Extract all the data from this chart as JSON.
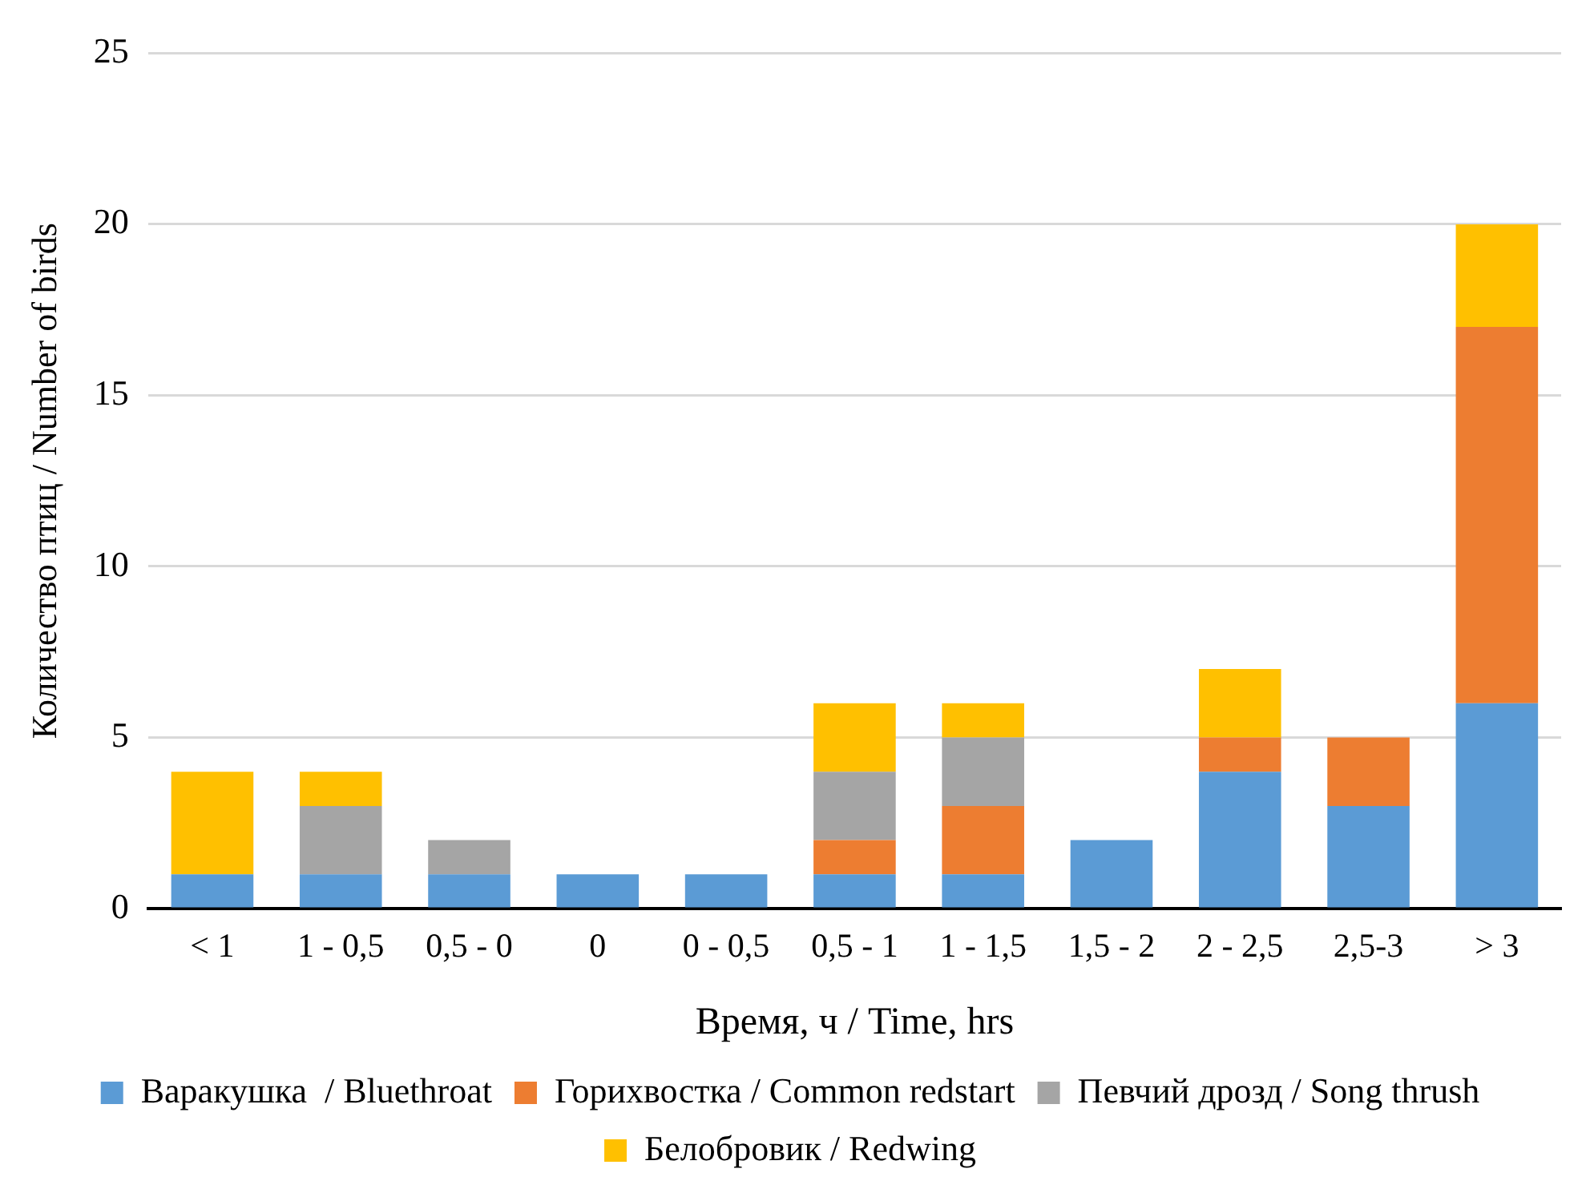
{
  "chart_data": {
    "type": "bar",
    "stacked": true,
    "xlabel": "Время, ч / Time, hrs",
    "ylabel": "Количество птиц / Number of birds",
    "categories": [
      "< 1",
      "1 - 0,5",
      "0,5 - 0",
      "0",
      "0 - 0,5",
      "0,5 - 1",
      "1 - 1,5",
      "1,5 - 2",
      "2 - 2,5",
      "2,5-3",
      "> 3"
    ],
    "series": [
      {
        "name": "Варакушка  / Bluethroat",
        "color": "#5b9bd5",
        "values": [
          1,
          1,
          1,
          1,
          1,
          1,
          1,
          2,
          4,
          3,
          6
        ]
      },
      {
        "name": "Горихвостка / Common redstart",
        "color": "#ed7d31",
        "values": [
          0,
          0,
          0,
          0,
          0,
          1,
          2,
          0,
          1,
          2,
          11
        ]
      },
      {
        "name": "Певчий дрозд / Song thrush",
        "color": "#a5a5a5",
        "values": [
          0,
          2,
          1,
          0,
          0,
          2,
          2,
          0,
          0,
          0,
          0
        ]
      },
      {
        "name": "Белобровик / Redwing",
        "color": "#ffc000",
        "values": [
          3,
          1,
          0,
          0,
          0,
          2,
          1,
          0,
          2,
          0,
          3
        ]
      }
    ],
    "ylim": [
      0,
      25
    ],
    "yticks": [
      0,
      5,
      10,
      15,
      20,
      25
    ],
    "grid": "y",
    "legend": "bottom"
  }
}
